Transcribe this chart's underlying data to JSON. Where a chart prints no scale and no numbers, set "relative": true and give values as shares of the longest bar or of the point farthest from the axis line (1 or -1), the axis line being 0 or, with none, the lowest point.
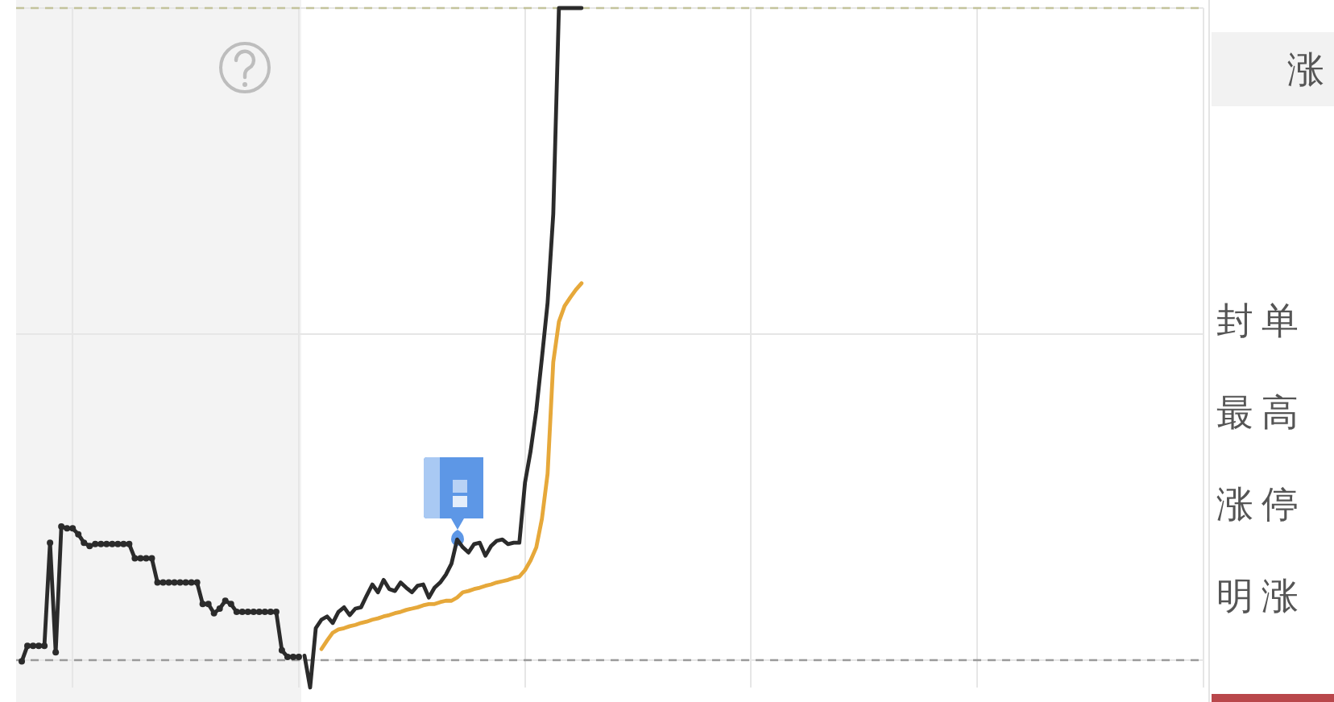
{
  "chart_data": {
    "type": "line",
    "relative": true,
    "grid": true,
    "legend": false,
    "marker": "none",
    "categories": [
      null,
      null,
      null,
      null,
      null,
      null,
      null,
      null,
      null,
      null,
      null,
      null,
      null,
      null,
      null,
      null,
      null,
      null,
      null,
      null,
      null,
      null,
      null,
      null,
      null,
      null,
      null,
      null,
      null,
      null,
      null,
      null,
      null,
      null,
      null,
      null,
      null,
      null,
      null,
      null,
      null,
      null,
      null,
      null,
      null,
      null,
      null,
      null,
      null,
      null,
      null,
      null,
      null,
      null,
      null,
      null,
      null,
      null,
      null,
      null,
      null,
      null,
      null,
      null,
      null,
      null,
      null,
      null,
      null,
      null,
      null,
      null,
      null,
      null,
      null,
      null,
      null,
      null,
      null,
      null,
      null,
      null,
      null,
      null,
      null,
      null,
      null,
      null,
      null,
      null,
      null,
      null,
      null,
      null,
      null,
      null,
      null,
      null,
      null,
      null,
      null,
      null,
      null,
      null,
      null,
      null,
      null,
      null,
      null,
      null,
      null,
      null,
      null,
      null,
      null,
      null,
      null,
      null,
      null,
      null,
      null,
      null,
      null,
      null,
      null,
      null,
      null,
      null,
      null,
      null,
      null,
      null,
      null,
      null,
      null,
      null,
      null,
      null,
      null,
      null,
      null,
      null,
      null,
      null,
      null,
      null,
      null,
      null,
      null,
      null,
      null,
      null,
      null,
      null,
      null,
      null,
      null,
      null,
      null,
      null,
      null,
      null,
      null,
      null,
      null,
      null,
      null,
      null,
      null,
      null,
      null,
      null,
      null,
      null,
      null,
      null,
      null,
      null,
      null,
      null,
      null,
      null,
      null,
      null,
      null,
      null,
      null,
      null,
      null,
      null,
      null,
      null,
      null,
      null,
      null,
      null,
      null,
      null,
      null,
      null,
      null,
      null,
      null,
      null,
      null,
      null,
      null,
      null,
      null,
      null,
      null
    ],
    "series": [
      {
        "color": "#2b2b2b",
        "marker": "circle",
        "values": [
          null,
          -0.002,
          0.022,
          0.022,
          0.022,
          0.022,
          0.18,
          0.012,
          0.205,
          0.202,
          0.202,
          0.193,
          0.18,
          0.175,
          0.178,
          0.178,
          0.178,
          0.178,
          0.178,
          0.178,
          0.178,
          0.156,
          0.156,
          0.156,
          0.156,
          0.119,
          0.119,
          0.119,
          0.119,
          0.119,
          0.119,
          0.119,
          0.119,
          0.086,
          0.086,
          0.072,
          0.079,
          0.091,
          0.086,
          0.074,
          0.074,
          0.074,
          0.074,
          0.074,
          0.074,
          0.074,
          0.074,
          0.015,
          0.005,
          0.005,
          0.005,
          null,
          null,
          null,
          null,
          null,
          null,
          null,
          null,
          null,
          null,
          null,
          null,
          null,
          null,
          null,
          null,
          null,
          null,
          null,
          null,
          null,
          null,
          null,
          null,
          null,
          null,
          null,
          null,
          null,
          null,
          null,
          null,
          null,
          null,
          null,
          null,
          null,
          null,
          null,
          null,
          null,
          null,
          null,
          null,
          null,
          null,
          null,
          null,
          null,
          null,
          null,
          null,
          null,
          null,
          null,
          null,
          null,
          null,
          null,
          null,
          null,
          null,
          null,
          null,
          null,
          null,
          null,
          null,
          null,
          null,
          null,
          null,
          null,
          null,
          null,
          null,
          null,
          null,
          null,
          null,
          null,
          null,
          null,
          null,
          null,
          null,
          null,
          null,
          null,
          null,
          null,
          null,
          null,
          null,
          null,
          null,
          null,
          null,
          null,
          null,
          null,
          null,
          null,
          null,
          null,
          null,
          null,
          null,
          null,
          null,
          null,
          null,
          null,
          null,
          null,
          null,
          null,
          null,
          null,
          null,
          null,
          null,
          null,
          null,
          null,
          null,
          null,
          null,
          null,
          null,
          null,
          null,
          null,
          null,
          null,
          null,
          null,
          null,
          null,
          null,
          null,
          null,
          null,
          null,
          null,
          null,
          null,
          null,
          null,
          null,
          null,
          null,
          null,
          null,
          null,
          null,
          null,
          null,
          null,
          null
        ]
      },
      {
        "color": "#2b2b2b",
        "values": [
          null,
          null,
          null,
          null,
          null,
          null,
          null,
          null,
          null,
          null,
          null,
          null,
          null,
          null,
          null,
          null,
          null,
          null,
          null,
          null,
          null,
          null,
          null,
          null,
          null,
          null,
          null,
          null,
          null,
          null,
          null,
          null,
          null,
          null,
          null,
          null,
          null,
          null,
          null,
          null,
          null,
          null,
          null,
          null,
          null,
          null,
          null,
          null,
          null,
          null,
          null,
          0.007,
          -0.042,
          0.049,
          0.062,
          0.067,
          0.057,
          0.074,
          0.081,
          0.069,
          0.079,
          0.081,
          0.099,
          0.116,
          0.104,
          0.123,
          0.109,
          0.106,
          0.119,
          0.111,
          0.104,
          0.114,
          0.116,
          0.096,
          0.111,
          0.119,
          0.131,
          0.148,
          0.185,
          0.173,
          0.165,
          0.178,
          0.18,
          0.16,
          0.175,
          0.183,
          0.185,
          0.178,
          0.18,
          0.18,
          0.272,
          0.321,
          0.383,
          0.464,
          0.548,
          0.684,
          1,
          1,
          1,
          1,
          1,
          null,
          null,
          null,
          null,
          null,
          null,
          null,
          null,
          null,
          null,
          null,
          null,
          null,
          null,
          null,
          null,
          null,
          null,
          null,
          null,
          null,
          null,
          null,
          null,
          null,
          null,
          null,
          null,
          null,
          null,
          null,
          null,
          null,
          null,
          null,
          null,
          null,
          null,
          null,
          null,
          null,
          null,
          null,
          null,
          null,
          null,
          null,
          null,
          null,
          null,
          null,
          null,
          null,
          null,
          null,
          null,
          null,
          null,
          null,
          null,
          null,
          null,
          null,
          null,
          null,
          null,
          null,
          null,
          null,
          null,
          null,
          null,
          null,
          null,
          null,
          null,
          null,
          null,
          null,
          null,
          null,
          null,
          null,
          null,
          null,
          null,
          null,
          null,
          null,
          null,
          null,
          null,
          null,
          null,
          null,
          null,
          null,
          null,
          null,
          null,
          null,
          null,
          null,
          null,
          null,
          null,
          null,
          null,
          null,
          null
        ]
      },
      {
        "color": "#e6a83a",
        "values": [
          null,
          null,
          null,
          null,
          null,
          null,
          null,
          null,
          null,
          null,
          null,
          null,
          null,
          null,
          null,
          null,
          null,
          null,
          null,
          null,
          null,
          null,
          null,
          null,
          null,
          null,
          null,
          null,
          null,
          null,
          null,
          null,
          null,
          null,
          null,
          null,
          null,
          null,
          null,
          null,
          null,
          null,
          null,
          null,
          null,
          null,
          null,
          null,
          null,
          null,
          null,
          null,
          null,
          null,
          0.017,
          0.03,
          0.042,
          0.047,
          0.049,
          0.052,
          0.054,
          0.057,
          0.059,
          0.062,
          0.064,
          0.067,
          0.069,
          0.072,
          0.074,
          0.077,
          0.079,
          0.081,
          0.084,
          0.086,
          0.086,
          0.089,
          0.091,
          0.091,
          0.096,
          0.104,
          0.106,
          0.109,
          0.111,
          0.114,
          0.116,
          0.119,
          0.121,
          0.123,
          0.126,
          0.128,
          0.138,
          0.153,
          0.173,
          0.217,
          0.286,
          0.457,
          0.519,
          0.543,
          0.556,
          0.568,
          0.578,
          null,
          null,
          null,
          null,
          null,
          null,
          null,
          null,
          null,
          null,
          null,
          null,
          null,
          null,
          null,
          null,
          null,
          null,
          null,
          null,
          null,
          null,
          null,
          null,
          null,
          null,
          null,
          null,
          null,
          null,
          null,
          null,
          null,
          null,
          null,
          null,
          null,
          null,
          null,
          null,
          null,
          null,
          null,
          null,
          null,
          null,
          null,
          null,
          null,
          null,
          null,
          null,
          null,
          null,
          null,
          null,
          null,
          null,
          null,
          null,
          null,
          null,
          null,
          null,
          null,
          null,
          null,
          null,
          null,
          null,
          null,
          null,
          null,
          null,
          null,
          null,
          null,
          null,
          null,
          null,
          null,
          null,
          null,
          null,
          null,
          null,
          null,
          null,
          null,
          null,
          null,
          null,
          null,
          null,
          null,
          null,
          null,
          null,
          null,
          null,
          null,
          null,
          null,
          null,
          null,
          null,
          null,
          null,
          null,
          null
        ]
      }
    ],
    "ref_lines": [
      {
        "axis": "y",
        "value": 0,
        "color": "#9a9a9a",
        "line_style": "dashed"
      },
      {
        "axis": "y",
        "value": 1,
        "color": "#c3c39c",
        "line_style": "dashed"
      }
    ],
    "annotations": [
      "涨",
      "封单",
      "最高",
      "涨停",
      "明涨"
    ]
  }
}
